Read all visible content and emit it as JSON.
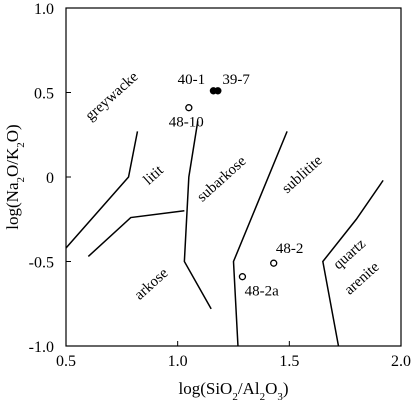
{
  "chart_data": {
    "type": "scatter",
    "xlabel_parts": [
      {
        "t": "log(SiO",
        "sub": false
      },
      {
        "t": "2",
        "sub": true
      },
      {
        "t": "/Al",
        "sub": false
      },
      {
        "t": "2",
        "sub": true
      },
      {
        "t": "O",
        "sub": false
      },
      {
        "t": "3",
        "sub": true
      },
      {
        "t": ")",
        "sub": false
      }
    ],
    "ylabel_parts": [
      {
        "t": "log(Na",
        "sub": false
      },
      {
        "t": "2",
        "sub": true
      },
      {
        "t": "O/K",
        "sub": false
      },
      {
        "t": "2",
        "sub": true
      },
      {
        "t": "O)",
        "sub": false
      }
    ],
    "xlim": [
      0.5,
      2.0
    ],
    "ylim": [
      -1.0,
      1.0
    ],
    "x_ticks": [
      {
        "value": 0.5,
        "label": "0.5"
      },
      {
        "value": 1.0,
        "label": "1.0"
      },
      {
        "value": 1.5,
        "label": "1.5"
      },
      {
        "value": 2.0,
        "label": "2.0"
      }
    ],
    "y_ticks": [
      {
        "value": 1.0,
        "label": "1.0"
      },
      {
        "value": 0.5,
        "label": "0.5"
      },
      {
        "value": 0.0,
        "label": "0"
      },
      {
        "value": -0.5,
        "label": "-0.5"
      },
      {
        "value": -1.0,
        "label": "-1.0"
      }
    ],
    "grid": false,
    "boundaries": [
      {
        "name": "greywacke-litit",
        "points": [
          [
            0.5,
            -0.42
          ],
          [
            0.78,
            0.0
          ],
          [
            0.82,
            0.27
          ]
        ]
      },
      {
        "name": "litit-arkose",
        "points": [
          [
            0.6,
            -0.47
          ],
          [
            0.79,
            -0.24
          ],
          [
            1.03,
            -0.2
          ]
        ]
      },
      {
        "name": "litit-subarkose",
        "points": [
          [
            1.09,
            0.33
          ],
          [
            1.05,
            0.0
          ],
          [
            1.03,
            -0.5
          ],
          [
            1.15,
            -0.78
          ]
        ]
      },
      {
        "name": "subarkose-sublitite",
        "points": [
          [
            1.49,
            0.27
          ],
          [
            1.25,
            -0.5
          ],
          [
            1.27,
            -1.0
          ]
        ]
      },
      {
        "name": "sublitite-quartzarenite",
        "points": [
          [
            1.92,
            -0.02
          ],
          [
            1.8,
            -0.25
          ],
          [
            1.65,
            -0.5
          ],
          [
            1.72,
            -1.0
          ]
        ]
      }
    ],
    "field_labels": [
      {
        "text": "greywacke",
        "x": 0.61,
        "y": 0.33,
        "rotate": -42
      },
      {
        "text": "litit",
        "x": 0.87,
        "y": -0.05,
        "rotate": -42
      },
      {
        "text": "subarkose",
        "x": 1.11,
        "y": -0.15,
        "rotate": -42
      },
      {
        "text": "arkose",
        "x": 0.83,
        "y": -0.73,
        "rotate": -42
      },
      {
        "text": "sublitite",
        "x": 1.49,
        "y": -0.1,
        "rotate": -42
      },
      {
        "text": "quartz",
        "x": 1.72,
        "y": -0.55,
        "rotate": -42
      },
      {
        "text": "arenite",
        "x": 1.77,
        "y": -0.7,
        "rotate": -42
      }
    ],
    "points": [
      {
        "label": "40-1",
        "x": 1.16,
        "y": 0.51,
        "filled": true
      },
      {
        "label": "39-7",
        "x": 1.18,
        "y": 0.51,
        "filled": true
      },
      {
        "label": "48-10",
        "x": 1.05,
        "y": 0.41,
        "filled": false
      },
      {
        "label": "48-2",
        "x": 1.43,
        "y": -0.51,
        "filled": false
      },
      {
        "label": "48-2a",
        "x": 1.29,
        "y": -0.59,
        "filled": false
      }
    ],
    "point_labels": [
      {
        "text": "40-1",
        "x": 1.0,
        "y": 0.55
      },
      {
        "text": "39-7",
        "x": 1.2,
        "y": 0.55
      },
      {
        "text": "48-10",
        "x": 0.96,
        "y": 0.3
      },
      {
        "text": "48-2",
        "x": 1.44,
        "y": -0.45
      },
      {
        "text": "48-2a",
        "x": 1.3,
        "y": -0.7
      }
    ]
  }
}
